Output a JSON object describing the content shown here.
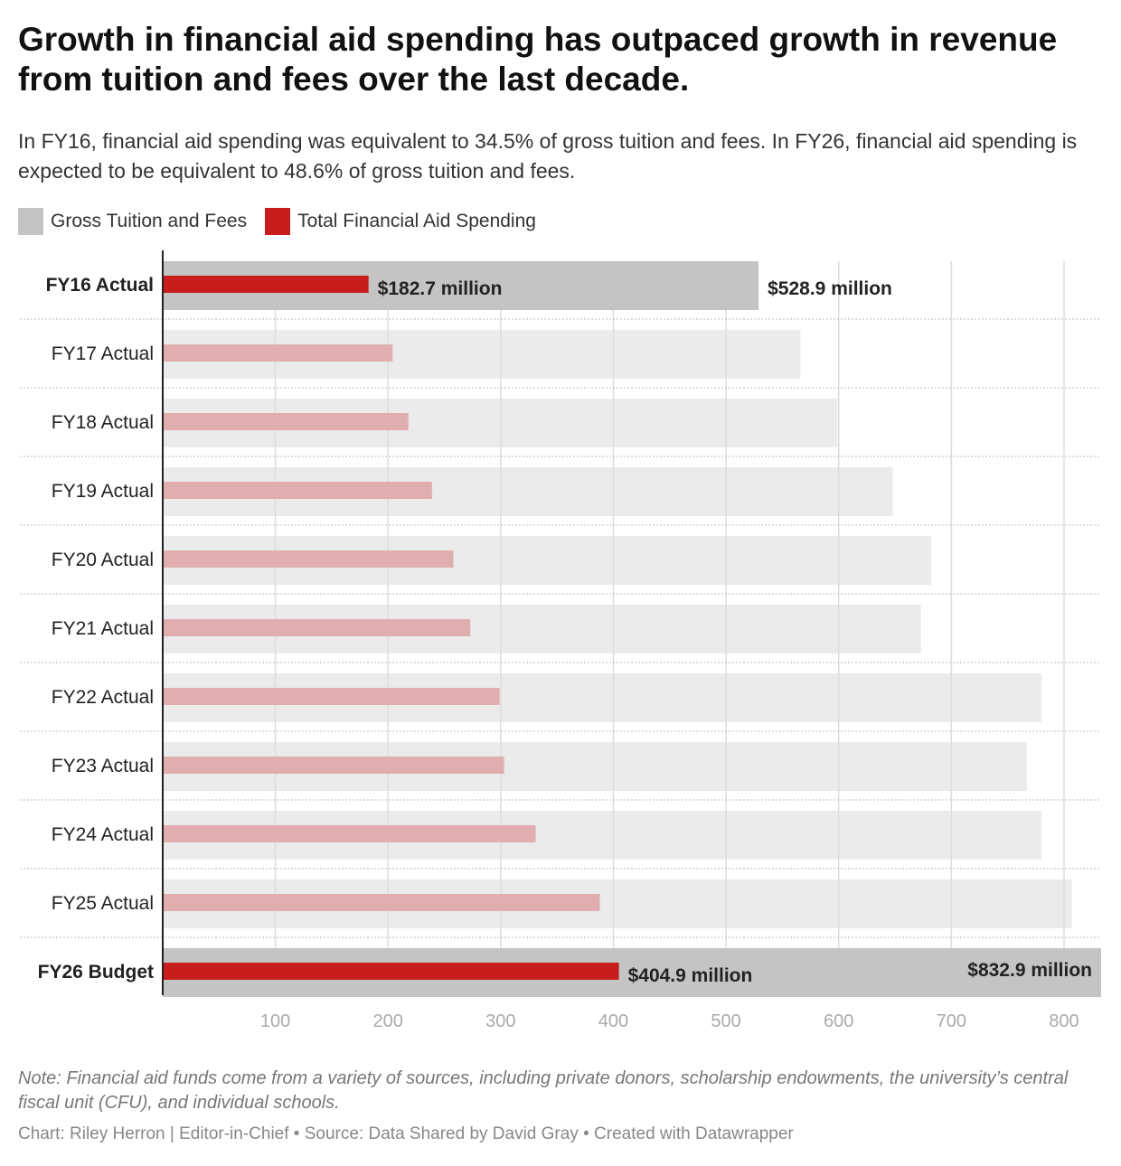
{
  "title": "Growth in financial aid spending has outpaced growth in revenue from tuition and fees over the last decade.",
  "subtitle": "In FY16, financial aid spending was equivalent to 34.5% of gross tuition and fees. In FY26, financial aid spending is expected to be equivalent to 48.6% of gross tuition and fees.",
  "note": "Note: Financial aid funds come from a variety of sources, including private donors, scholarship endowments, the university’s central fiscal unit (CFU), and individual schools.",
  "credit": "Chart: Riley Herron | Editor-in-Chief • Source: Data Shared by David Gray • Created with Datawrapper",
  "chart_data": {
    "type": "bar",
    "orientation": "horizontal",
    "categories": [
      "FY16 Actual",
      "FY17 Actual",
      "FY18 Actual",
      "FY19 Actual",
      "FY20 Actual",
      "FY21 Actual",
      "FY22 Actual",
      "FY23 Actual",
      "FY24 Actual",
      "FY25 Actual",
      "FY26 Budget"
    ],
    "highlighted": [
      "FY16 Actual",
      "FY26 Budget"
    ],
    "series": [
      {
        "name": "Gross Tuition and Fees",
        "color": "#c4c4c4",
        "muted_color": "#ebebeb",
        "values": [
          528.9,
          566,
          599,
          648,
          682,
          673,
          780,
          767,
          780,
          807,
          832.9
        ]
      },
      {
        "name": "Total Financial Aid Spending",
        "color": "#c71e1d",
        "muted_color": "#e0aeae",
        "values": [
          182.7,
          204,
          218,
          239,
          258,
          273,
          299,
          303,
          331,
          388,
          404.9
        ]
      }
    ],
    "data_labels": {
      "FY16 Actual": [
        "$528.9 million",
        "$182.7 million"
      ],
      "FY26 Budget": [
        "$832.9 million",
        "$404.9 million"
      ]
    },
    "xlim": [
      0,
      832.9
    ],
    "xticks": [
      0,
      100,
      200,
      300,
      400,
      500,
      600,
      700,
      800
    ],
    "grid": true,
    "legend": "top-left"
  }
}
